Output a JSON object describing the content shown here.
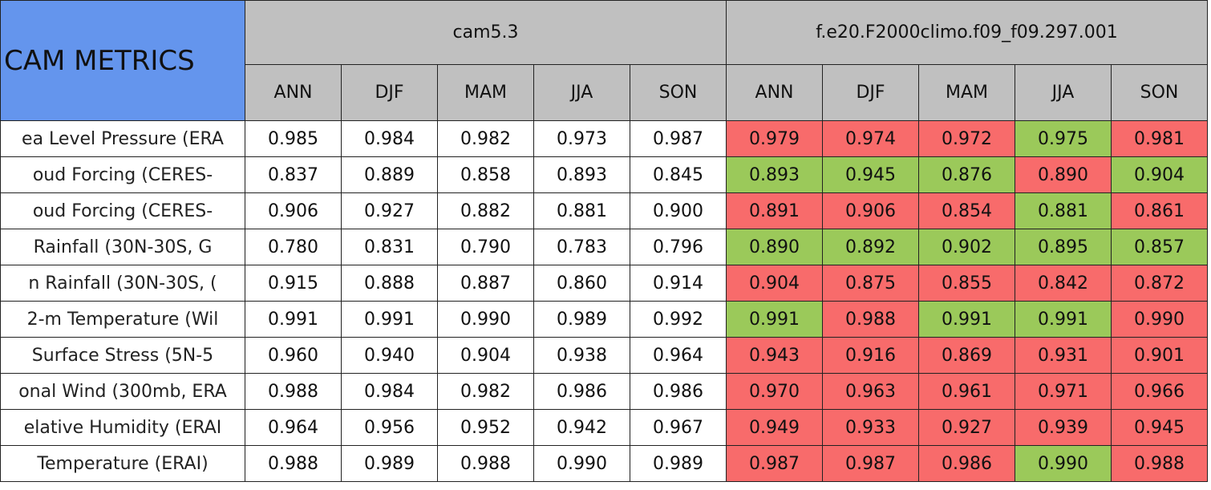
{
  "header": {
    "title": "CAM METRICS"
  },
  "groups": [
    {
      "name": "cam5.3",
      "seasons": [
        "ANN",
        "DJF",
        "MAM",
        "JJA",
        "SON"
      ]
    },
    {
      "name": "f.e20.F2000climo.f09_f09.297.001",
      "seasons": [
        "ANN",
        "DJF",
        "MAM",
        "JJA",
        "SON"
      ]
    }
  ],
  "table": {
    "rows": [
      {
        "label": "ea Level Pressure (ERA",
        "values": [
          "0.985",
          "0.984",
          "0.982",
          "0.973",
          "0.987",
          "0.979",
          "0.974",
          "0.972",
          "0.975",
          "0.981"
        ],
        "colors": [
          "#ffffff",
          "#ffffff",
          "#ffffff",
          "#ffffff",
          "#ffffff",
          "#f86b6b",
          "#f86b6b",
          "#f86b6b",
          "#9bc95a",
          "#f86b6b"
        ]
      },
      {
        "label": "oud Forcing (CERES-",
        "values": [
          "0.837",
          "0.889",
          "0.858",
          "0.893",
          "0.845",
          "0.893",
          "0.945",
          "0.876",
          "0.890",
          "0.904"
        ],
        "colors": [
          "#ffffff",
          "#ffffff",
          "#ffffff",
          "#ffffff",
          "#ffffff",
          "#9bc95a",
          "#9bc95a",
          "#9bc95a",
          "#f86b6b",
          "#9bc95a"
        ]
      },
      {
        "label": "oud Forcing (CERES-",
        "values": [
          "0.906",
          "0.927",
          "0.882",
          "0.881",
          "0.900",
          "0.891",
          "0.906",
          "0.854",
          "0.881",
          "0.861"
        ],
        "colors": [
          "#ffffff",
          "#ffffff",
          "#ffffff",
          "#ffffff",
          "#ffffff",
          "#f86b6b",
          "#f86b6b",
          "#f86b6b",
          "#9bc95a",
          "#f86b6b"
        ]
      },
      {
        "label": "Rainfall (30N-30S, G",
        "values": [
          "0.780",
          "0.831",
          "0.790",
          "0.783",
          "0.796",
          "0.890",
          "0.892",
          "0.902",
          "0.895",
          "0.857"
        ],
        "colors": [
          "#ffffff",
          "#ffffff",
          "#ffffff",
          "#ffffff",
          "#ffffff",
          "#9bc95a",
          "#9bc95a",
          "#9bc95a",
          "#9bc95a",
          "#9bc95a"
        ]
      },
      {
        "label": "n Rainfall (30N-30S, (",
        "values": [
          "0.915",
          "0.888",
          "0.887",
          "0.860",
          "0.914",
          "0.904",
          "0.875",
          "0.855",
          "0.842",
          "0.872"
        ],
        "colors": [
          "#ffffff",
          "#ffffff",
          "#ffffff",
          "#ffffff",
          "#ffffff",
          "#f86b6b",
          "#f86b6b",
          "#f86b6b",
          "#f86b6b",
          "#f86b6b"
        ]
      },
      {
        "label": "2-m Temperature (Wil",
        "values": [
          "0.991",
          "0.991",
          "0.990",
          "0.989",
          "0.992",
          "0.991",
          "0.988",
          "0.991",
          "0.991",
          "0.990"
        ],
        "colors": [
          "#ffffff",
          "#ffffff",
          "#ffffff",
          "#ffffff",
          "#ffffff",
          "#9bc95a",
          "#f86b6b",
          "#9bc95a",
          "#9bc95a",
          "#f86b6b"
        ]
      },
      {
        "label": "Surface Stress (5N-5",
        "values": [
          "0.960",
          "0.940",
          "0.904",
          "0.938",
          "0.964",
          "0.943",
          "0.916",
          "0.869",
          "0.931",
          "0.901"
        ],
        "colors": [
          "#ffffff",
          "#ffffff",
          "#ffffff",
          "#ffffff",
          "#ffffff",
          "#f86b6b",
          "#f86b6b",
          "#f86b6b",
          "#f86b6b",
          "#f86b6b"
        ]
      },
      {
        "label": "onal Wind (300mb, ERA",
        "values": [
          "0.988",
          "0.984",
          "0.982",
          "0.986",
          "0.986",
          "0.970",
          "0.963",
          "0.961",
          "0.971",
          "0.966"
        ],
        "colors": [
          "#ffffff",
          "#ffffff",
          "#ffffff",
          "#ffffff",
          "#ffffff",
          "#f86b6b",
          "#f86b6b",
          "#f86b6b",
          "#f86b6b",
          "#f86b6b"
        ]
      },
      {
        "label": "elative Humidity (ERAI",
        "values": [
          "0.964",
          "0.956",
          "0.952",
          "0.942",
          "0.967",
          "0.949",
          "0.933",
          "0.927",
          "0.939",
          "0.945"
        ],
        "colors": [
          "#ffffff",
          "#ffffff",
          "#ffffff",
          "#ffffff",
          "#ffffff",
          "#f86b6b",
          "#f86b6b",
          "#f86b6b",
          "#f86b6b",
          "#f86b6b"
        ]
      },
      {
        "label": "Temperature (ERAI)",
        "values": [
          "0.988",
          "0.989",
          "0.988",
          "0.990",
          "0.989",
          "0.987",
          "0.987",
          "0.986",
          "0.990",
          "0.988"
        ],
        "colors": [
          "#ffffff",
          "#ffffff",
          "#ffffff",
          "#ffffff",
          "#ffffff",
          "#f86b6b",
          "#f86b6b",
          "#f86b6b",
          "#9bc95a",
          "#f86b6b"
        ]
      }
    ]
  }
}
